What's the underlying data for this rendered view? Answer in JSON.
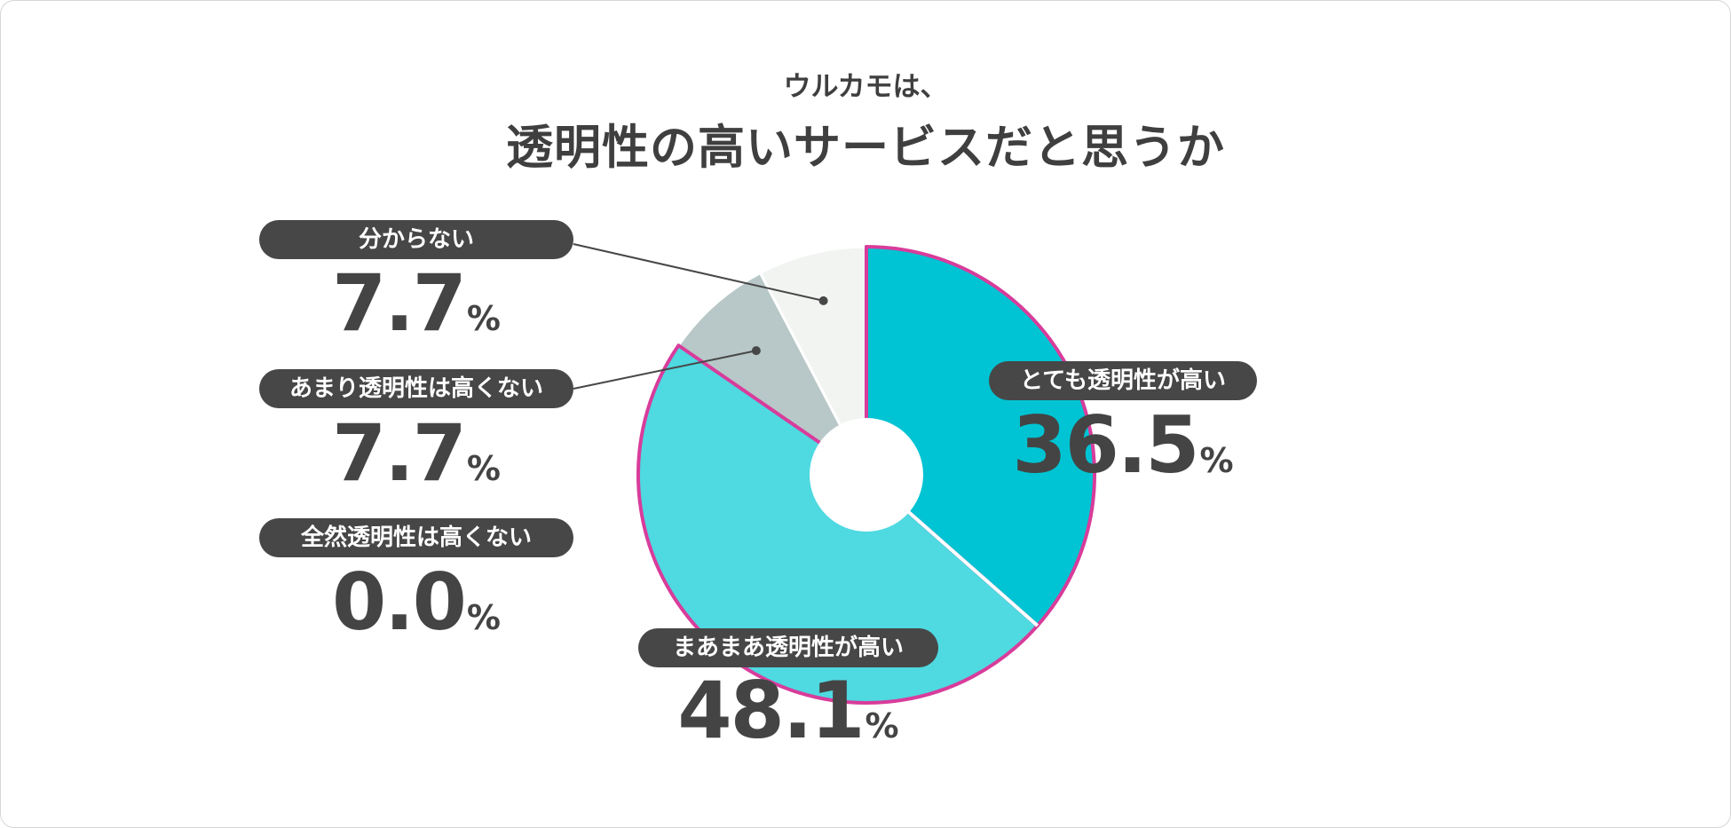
{
  "header": {
    "subtitle": "ウルカモは、",
    "title": "透明性の高いサービスだと思うか"
  },
  "colors": {
    "very_high": "#00c4d3",
    "somewhat_high": "#4fd9e0",
    "not_very": "#b8c7c7",
    "not_at_all": "#9e9e9e",
    "unknown": "#f1f4f1",
    "highlight_border": "#d83c9b",
    "label_pill": "#474747",
    "text": "#444444"
  },
  "chart_data": {
    "type": "pie",
    "title": "透明性の高いサービスだと思うか",
    "subtitle": "ウルカモは、",
    "unit": "%",
    "donut": true,
    "categories": [
      "とても透明性が高い",
      "まあまあ透明性が高い",
      "全然透明性は高くない",
      "あまり透明性は高くない",
      "分からない"
    ],
    "values": [
      36.5,
      48.1,
      0.0,
      7.7,
      7.7
    ],
    "value_labels": [
      "36.5",
      "48.1",
      "0.0",
      "7.7",
      "7.7"
    ],
    "highlighted": [
      "とても透明性が高い",
      "まあまあ透明性が高い"
    ]
  }
}
